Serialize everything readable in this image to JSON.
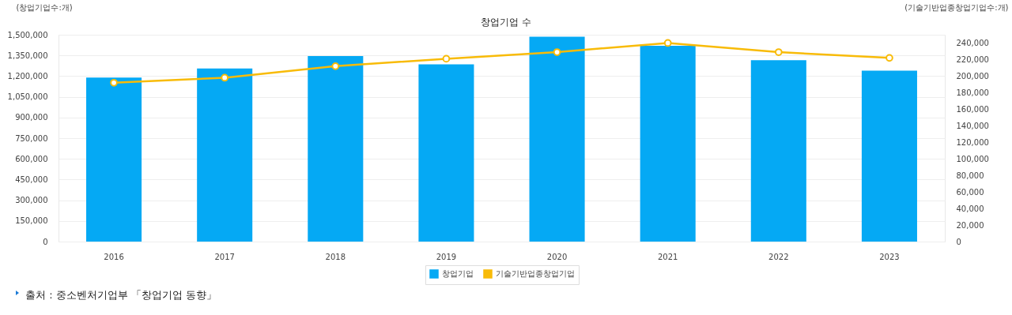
{
  "chart_data": {
    "type": "bar",
    "title": "창업기업 수",
    "ylabel": "(창업기업수:개)",
    "y2label": "(기술기반업종창업기업수:개)",
    "categories": [
      "2016",
      "2017",
      "2018",
      "2019",
      "2020",
      "2021",
      "2022",
      "2023"
    ],
    "series": [
      {
        "name": "창업기업",
        "color": "#05a9f4",
        "values": [
          1190000,
          1255000,
          1345000,
          1285000,
          1485000,
          1420000,
          1315000,
          1240000
        ]
      },
      {
        "name": "기술기반업종창업기업",
        "type": "line",
        "axis": "y2",
        "color": "#f8bb08",
        "values": [
          192000,
          198000,
          212000,
          221000,
          229000,
          240000,
          229000,
          222000
        ]
      }
    ],
    "ylim": [
      0,
      1500000
    ],
    "yticks": [
      0,
      {
        "value": 150000,
        "label": "150,000"
      },
      {
        "value": 300000,
        "label": "300,000"
      },
      {
        "value": 450000,
        "label": "450,000"
      },
      {
        "value": 600000,
        "label": "600,000"
      },
      {
        "value": 750000,
        "label": "750,000"
      },
      {
        "value": 900000,
        "label": "900,000"
      },
      {
        "value": 1050000,
        "label": "1,050,000"
      },
      {
        "value": 1200000,
        "label": "1,200,000"
      },
      {
        "value": 1350000,
        "label": "1,350,000"
      },
      {
        "value": 1500000,
        "label": "1,500,000"
      }
    ],
    "y2lim": [
      0,
      250000
    ],
    "y2ticks": [
      0,
      {
        "value": 20000,
        "label": "20,000"
      },
      {
        "value": 40000,
        "label": "40,000"
      },
      {
        "value": 60000,
        "label": "60,000"
      },
      {
        "value": 80000,
        "label": "80,000"
      },
      {
        "value": 100000,
        "label": "100,000"
      },
      {
        "value": 120000,
        "label": "120,000"
      },
      {
        "value": 140000,
        "label": "140,000"
      },
      {
        "value": 160000,
        "label": "160,000"
      },
      {
        "value": 180000,
        "label": "180,000"
      },
      {
        "value": 200000,
        "label": "200,000"
      },
      {
        "value": 220000,
        "label": "220,000"
      },
      {
        "value": 240000,
        "label": "240,000"
      }
    ],
    "grid": "y",
    "legend": "bottom",
    "marker": "circle",
    "line_style": "solid",
    "annotations": [
      "출처 : 중소벤처기업부 「창업기업 동향」"
    ]
  }
}
